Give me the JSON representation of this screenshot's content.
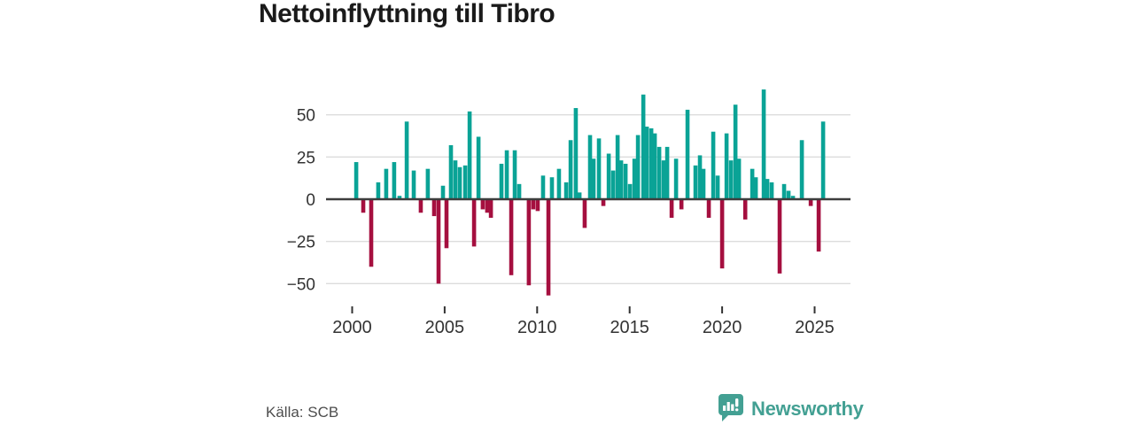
{
  "title": "Nettoinflyttning till Tibro",
  "source_label": "Källa: SCB",
  "brand": {
    "name": "Newsworthy"
  },
  "colors": {
    "positive": "#0aa396",
    "negative": "#a50f3f",
    "axis": "#3d3d3d",
    "grid": "#dcdcdc",
    "tick": "#333333",
    "brand": "#43a093"
  },
  "chart_data": {
    "type": "bar",
    "title": "Nettoinflyttning till Tibro",
    "xlabel": "",
    "ylabel": "",
    "grid": true,
    "legend": false,
    "yticks": [
      50,
      25,
      0,
      -25,
      -50
    ],
    "ylim": [
      -62,
      68
    ],
    "xticks": [
      2000,
      2005,
      2010,
      2015,
      2020,
      2025
    ],
    "xlim": [
      1998.6,
      2026.9
    ],
    "points": [
      [
        2000.22,
        22
      ],
      [
        2000.6,
        -8
      ],
      [
        2001.03,
        -40
      ],
      [
        2001.41,
        10
      ],
      [
        2001.84,
        18
      ],
      [
        2002.27,
        22
      ],
      [
        2002.56,
        2
      ],
      [
        2002.95,
        46
      ],
      [
        2003.33,
        17
      ],
      [
        2003.71,
        -8
      ],
      [
        2004.09,
        18
      ],
      [
        2004.43,
        -10
      ],
      [
        2004.67,
        -50
      ],
      [
        2004.91,
        8
      ],
      [
        2005.1,
        -29
      ],
      [
        2005.34,
        32
      ],
      [
        2005.58,
        23
      ],
      [
        2005.82,
        19
      ],
      [
        2006.11,
        20
      ],
      [
        2006.35,
        52
      ],
      [
        2006.59,
        -28
      ],
      [
        2006.83,
        37
      ],
      [
        2007.06,
        -6
      ],
      [
        2007.3,
        -8
      ],
      [
        2007.5,
        -11
      ],
      [
        2008.07,
        21
      ],
      [
        2008.36,
        29
      ],
      [
        2008.6,
        -45
      ],
      [
        2008.79,
        29
      ],
      [
        2009.03,
        9
      ],
      [
        2009.55,
        -51
      ],
      [
        2009.79,
        -6
      ],
      [
        2010.03,
        -7
      ],
      [
        2010.32,
        14
      ],
      [
        2010.61,
        -57
      ],
      [
        2010.8,
        13
      ],
      [
        2011.18,
        18
      ],
      [
        2011.57,
        10
      ],
      [
        2011.81,
        35
      ],
      [
        2012.09,
        54
      ],
      [
        2012.29,
        4
      ],
      [
        2012.57,
        -17
      ],
      [
        2012.86,
        38
      ],
      [
        2013.05,
        24
      ],
      [
        2013.34,
        36
      ],
      [
        2013.58,
        -4
      ],
      [
        2013.87,
        27
      ],
      [
        2014.11,
        17
      ],
      [
        2014.35,
        38
      ],
      [
        2014.54,
        23
      ],
      [
        2014.78,
        21
      ],
      [
        2015.02,
        9
      ],
      [
        2015.26,
        24
      ],
      [
        2015.45,
        38
      ],
      [
        2015.74,
        62
      ],
      [
        2015.93,
        43
      ],
      [
        2016.17,
        42
      ],
      [
        2016.36,
        39
      ],
      [
        2016.6,
        31
      ],
      [
        2016.84,
        23
      ],
      [
        2017.03,
        31
      ],
      [
        2017.27,
        -11
      ],
      [
        2017.51,
        24
      ],
      [
        2017.8,
        -6
      ],
      [
        2018.13,
        53
      ],
      [
        2018.56,
        20
      ],
      [
        2018.8,
        26
      ],
      [
        2018.99,
        18
      ],
      [
        2019.28,
        -11
      ],
      [
        2019.52,
        40
      ],
      [
        2019.76,
        14
      ],
      [
        2020.0,
        -41
      ],
      [
        2020.24,
        39
      ],
      [
        2020.48,
        23
      ],
      [
        2020.72,
        56
      ],
      [
        2020.91,
        24
      ],
      [
        2021.25,
        -12
      ],
      [
        2021.63,
        18
      ],
      [
        2021.82,
        13
      ],
      [
        2022.25,
        65
      ],
      [
        2022.44,
        12
      ],
      [
        2022.68,
        10
      ],
      [
        2023.11,
        -44
      ],
      [
        2023.35,
        9
      ],
      [
        2023.59,
        5
      ],
      [
        2023.83,
        2
      ],
      [
        2024.31,
        35
      ],
      [
        2024.79,
        -4
      ],
      [
        2025.22,
        -31
      ],
      [
        2025.46,
        46
      ]
    ]
  }
}
